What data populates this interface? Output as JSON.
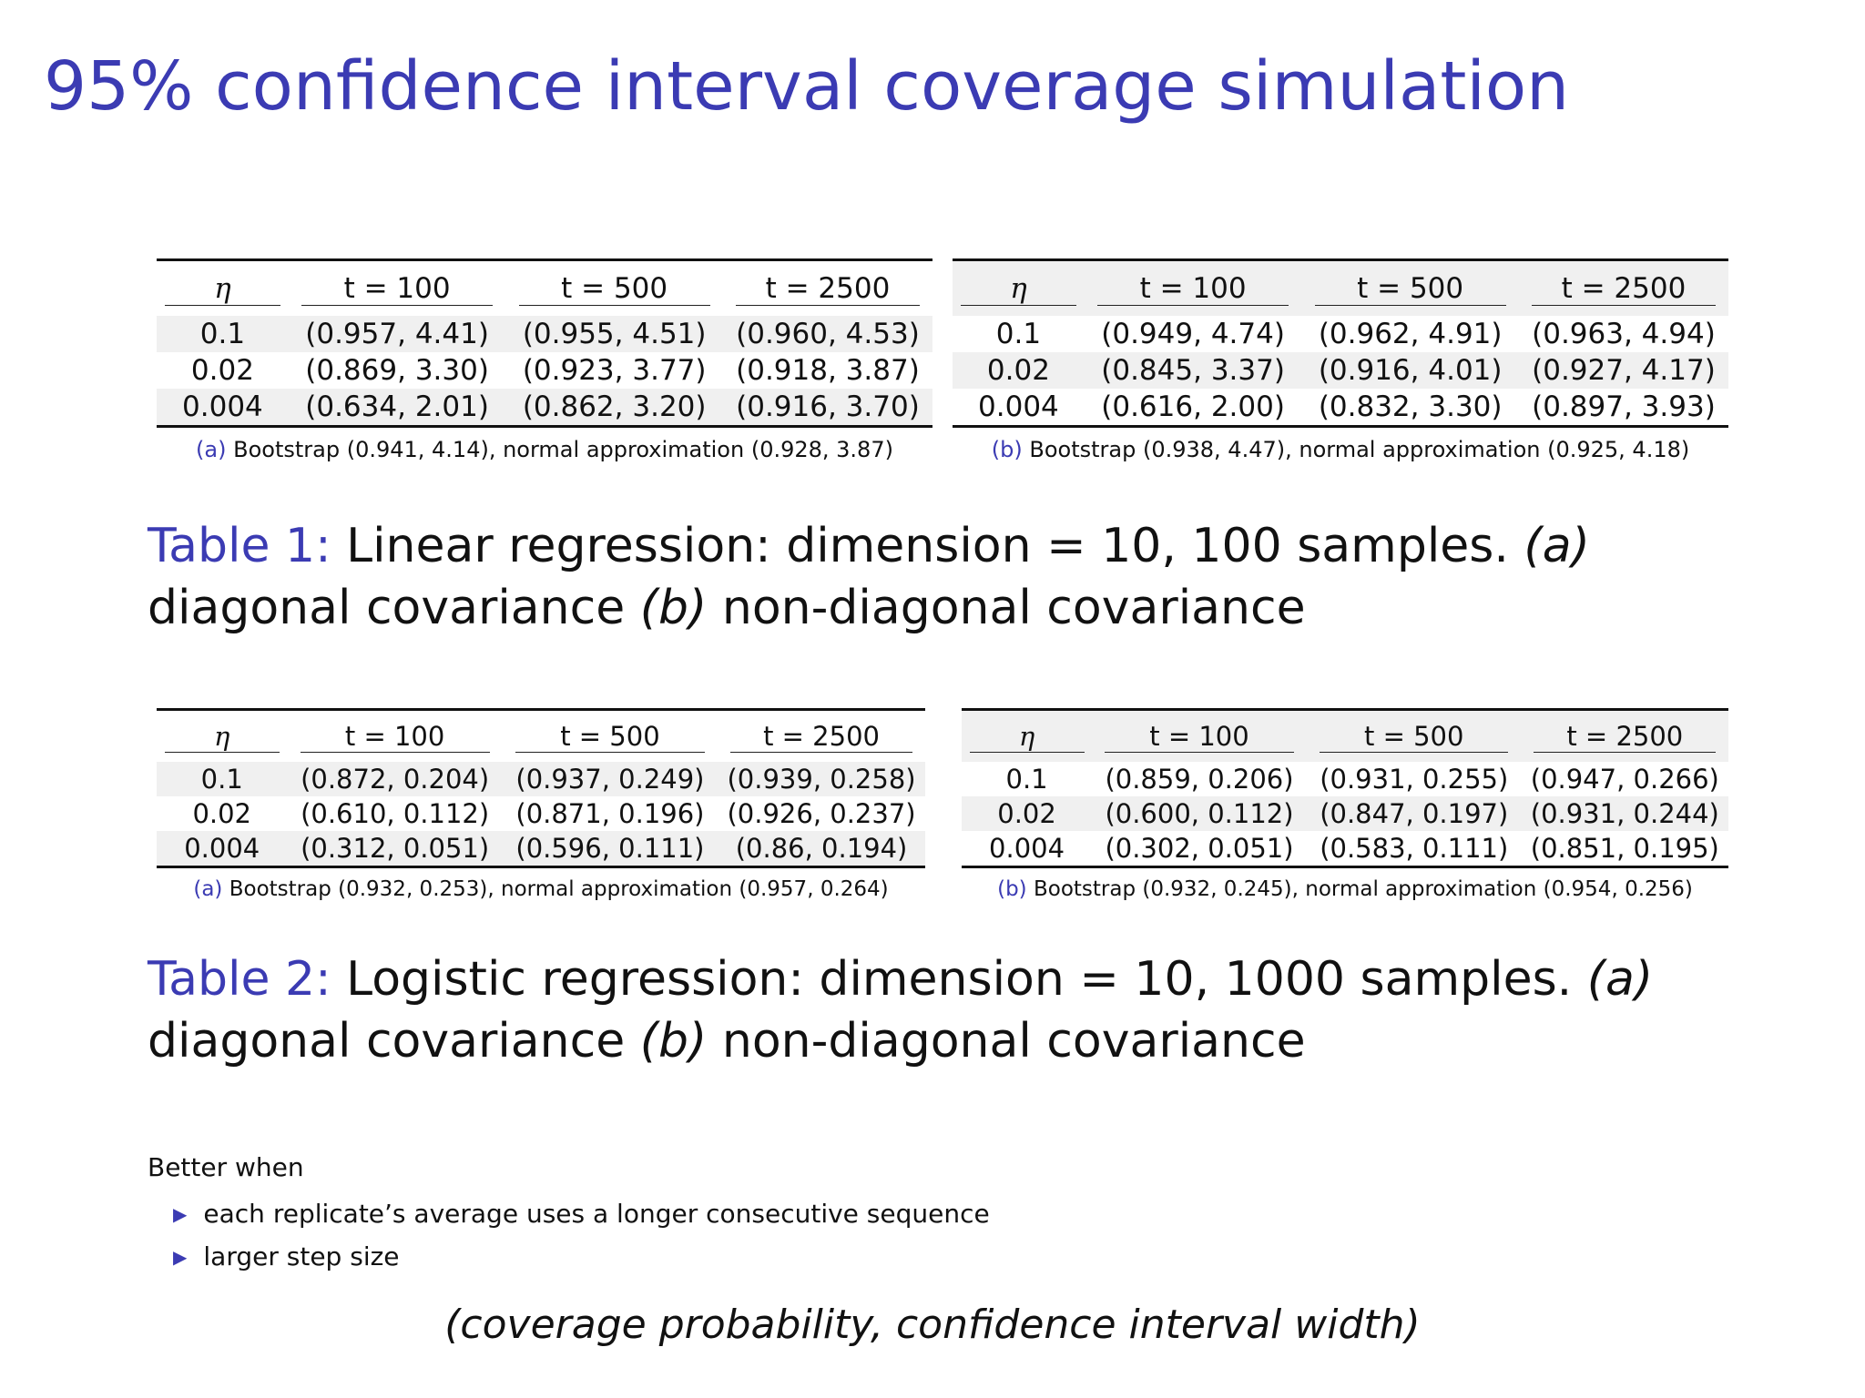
{
  "title": "95% confidence interval coverage simulation",
  "table1": {
    "caption": {
      "label": "Table 1:",
      "text_1": "Linear regression: dimension = 10, 100 samples.",
      "a_marker": "(a)",
      "text_2": "diagonal covariance",
      "b_marker": "(b)",
      "text_3": "non-diagonal covariance"
    },
    "a": {
      "header": [
        "η",
        "t = 100",
        "t = 500",
        "t = 2500"
      ],
      "rows": [
        [
          "0.1",
          "(0.957, 4.41)",
          "(0.955, 4.51)",
          "(0.960, 4.53)"
        ],
        [
          "0.02",
          "(0.869, 3.30)",
          "(0.923, 3.77)",
          "(0.918, 3.87)"
        ],
        [
          "0.004",
          "(0.634, 2.01)",
          "(0.862, 3.20)",
          "(0.916, 3.70)"
        ]
      ],
      "sub_label": "(a)",
      "sub_text": "Bootstrap (0.941, 4.14), normal approximation (0.928, 3.87)"
    },
    "b": {
      "header": [
        "η",
        "t = 100",
        "t = 500",
        "t = 2500"
      ],
      "rows": [
        [
          "0.1",
          "(0.949, 4.74)",
          "(0.962, 4.91)",
          "(0.963, 4.94)"
        ],
        [
          "0.02",
          "(0.845, 3.37)",
          "(0.916, 4.01)",
          "(0.927, 4.17)"
        ],
        [
          "0.004",
          "(0.616, 2.00)",
          "(0.832, 3.30)",
          "(0.897, 3.93)"
        ]
      ],
      "sub_label": "(b)",
      "sub_text": "Bootstrap (0.938, 4.47), normal approximation (0.925, 4.18)"
    }
  },
  "table2": {
    "caption": {
      "label": "Table 2:",
      "text_1": "Logistic regression: dimension = 10, 1000 samples.",
      "a_marker": "(a)",
      "text_2": "diagonal covariance",
      "b_marker": "(b)",
      "text_3": "non-diagonal covariance"
    },
    "a": {
      "header": [
        "η",
        "t = 100",
        "t = 500",
        "t = 2500"
      ],
      "rows": [
        [
          "0.1",
          "(0.872, 0.204)",
          "(0.937, 0.249)",
          "(0.939, 0.258)"
        ],
        [
          "0.02",
          "(0.610, 0.112)",
          "(0.871, 0.196)",
          "(0.926, 0.237)"
        ],
        [
          "0.004",
          "(0.312, 0.051)",
          "(0.596, 0.111)",
          "(0.86, 0.194)"
        ]
      ],
      "sub_label": "(a)",
      "sub_text": "Bootstrap (0.932, 0.253), normal approximation (0.957, 0.264)"
    },
    "b": {
      "header": [
        "η",
        "t = 100",
        "t = 500",
        "t = 2500"
      ],
      "rows": [
        [
          "0.1",
          "(0.859, 0.206)",
          "(0.931, 0.255)",
          "(0.947, 0.266)"
        ],
        [
          "0.02",
          "(0.600, 0.112)",
          "(0.847, 0.197)",
          "(0.931, 0.244)"
        ],
        [
          "0.004",
          "(0.302, 0.051)",
          "(0.583, 0.111)",
          "(0.851, 0.195)"
        ]
      ],
      "sub_label": "(b)",
      "sub_text": "Bootstrap (0.932, 0.245), normal approximation (0.954, 0.256)"
    }
  },
  "notes": {
    "lead": "Better when",
    "items": [
      "each replicate’s average uses a longer consecutive sequence",
      "larger step size"
    ]
  },
  "footer": "(coverage probability, confidence interval width)"
}
